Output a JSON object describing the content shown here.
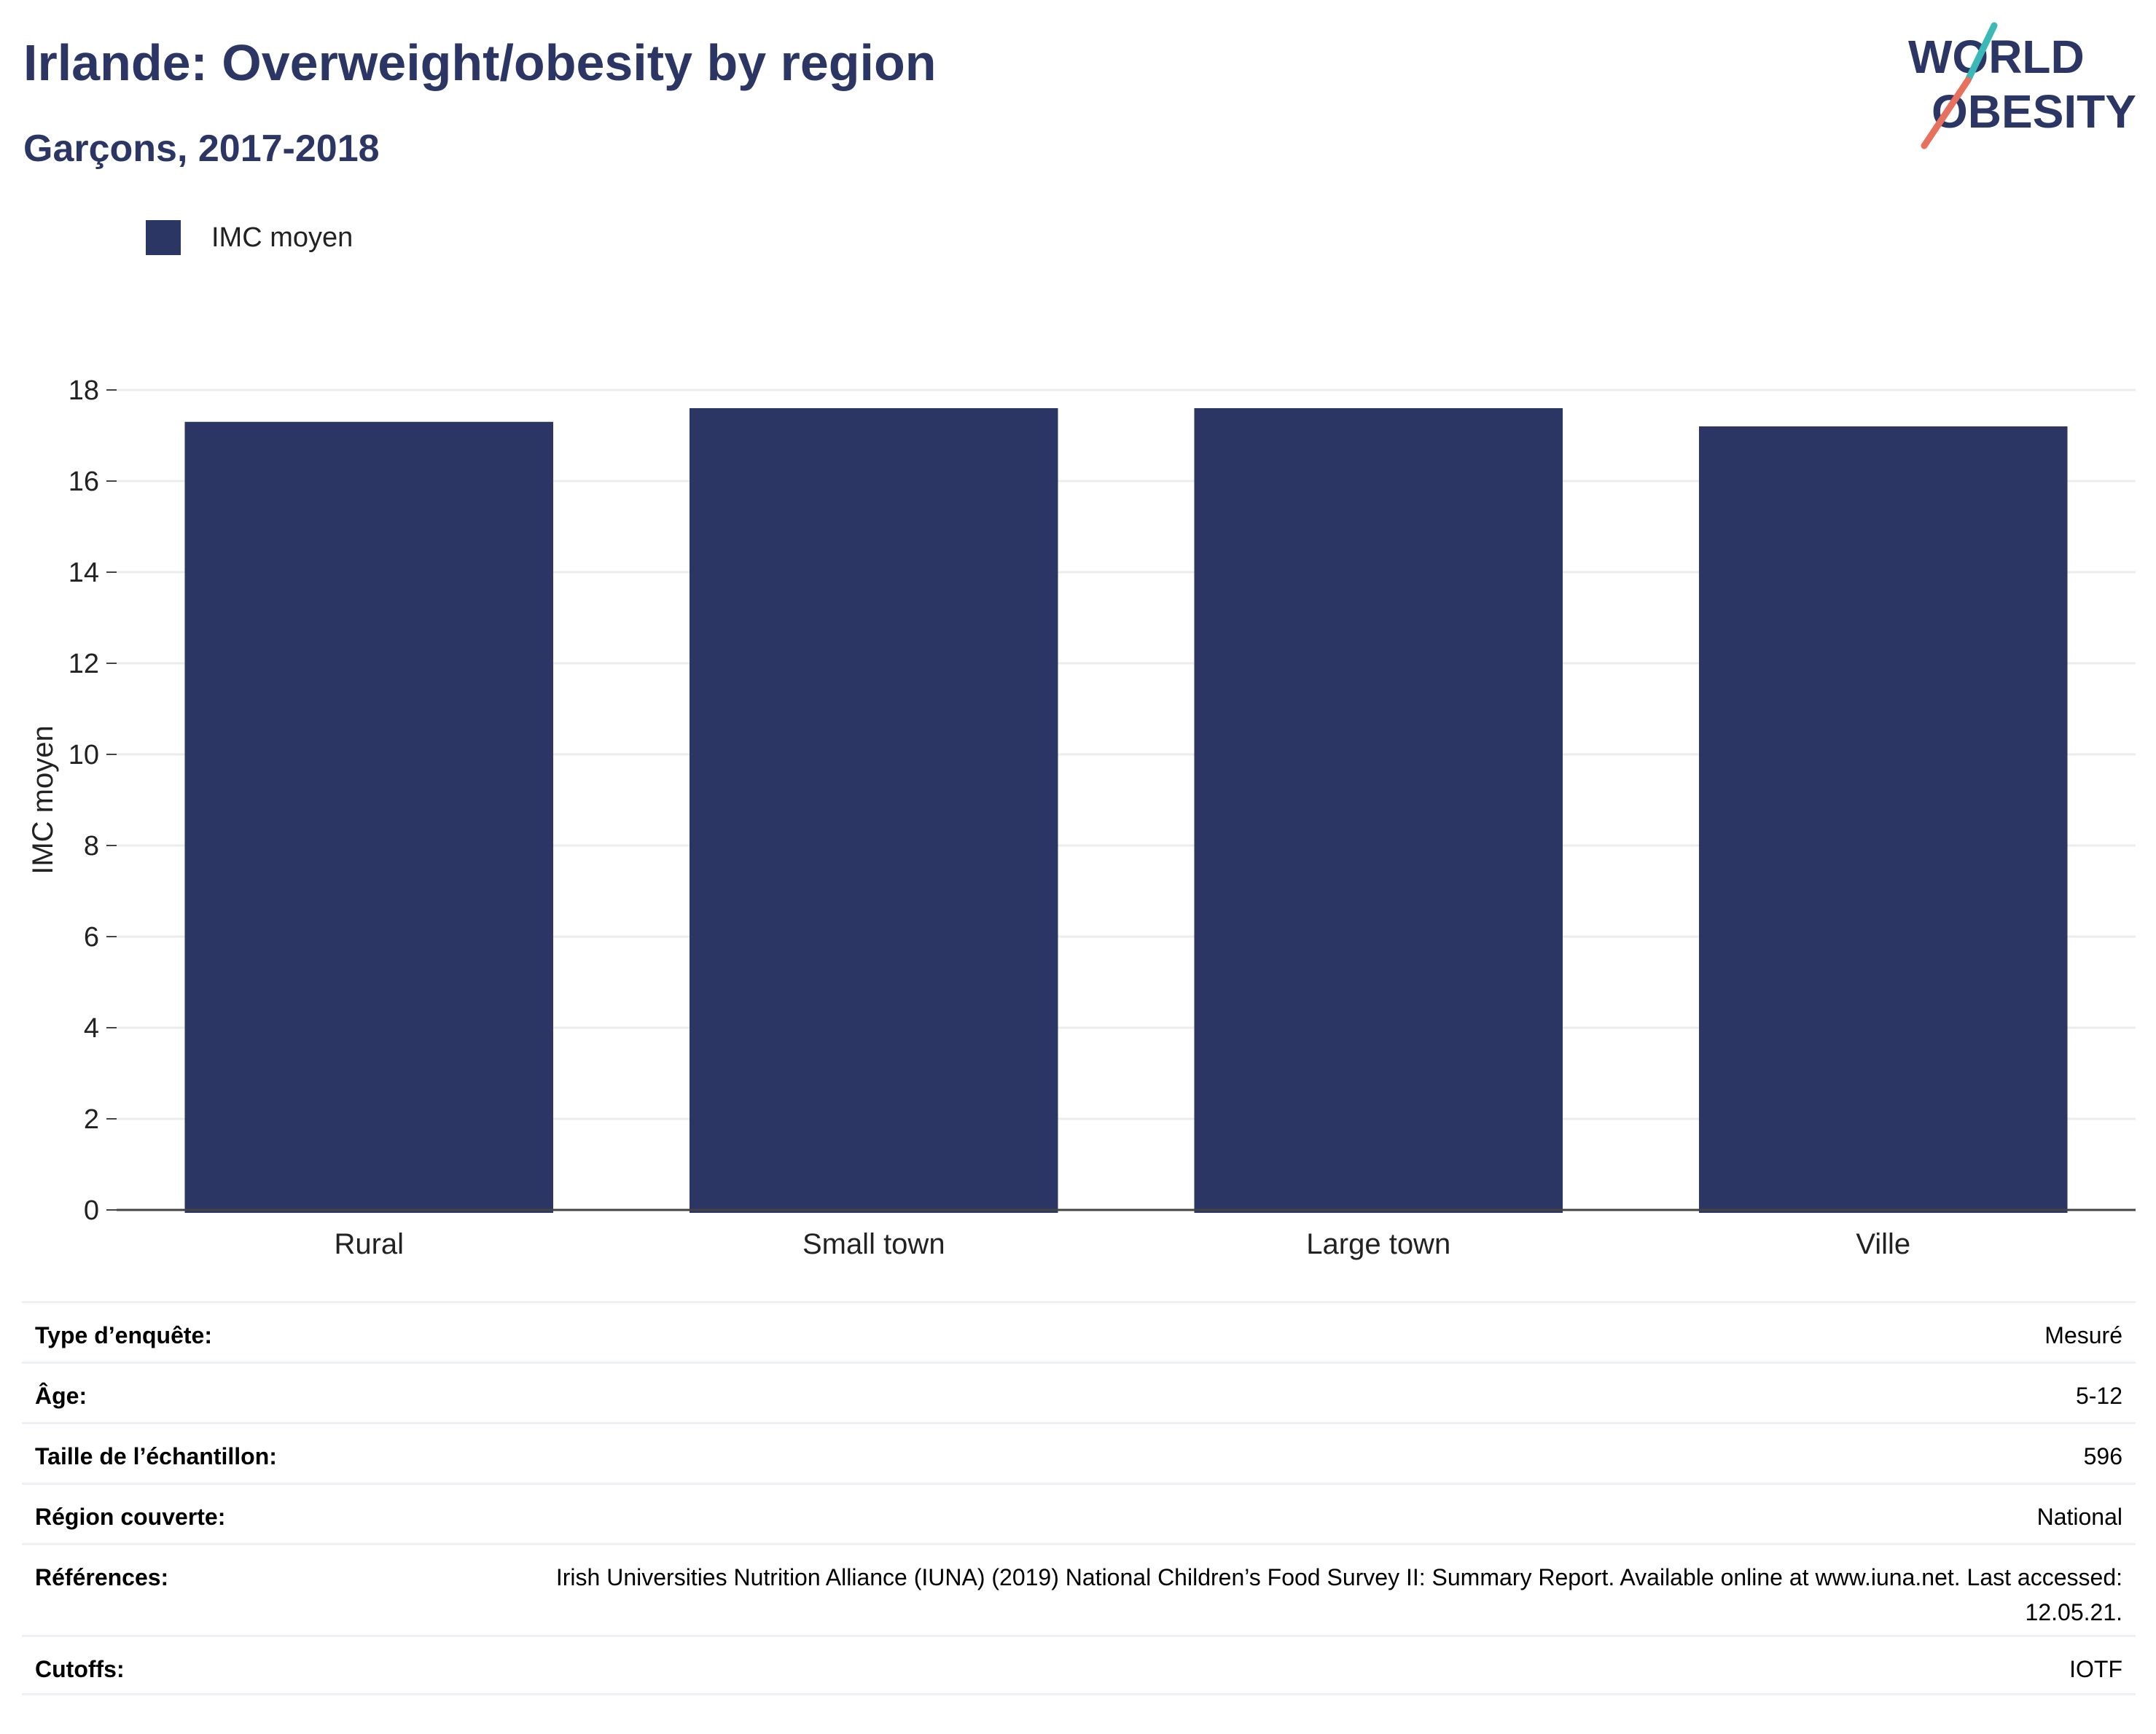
{
  "header": {
    "title": "Irlande: Overweight/obesity by region",
    "subtitle": "Garçons, 2017-2018"
  },
  "logo": {
    "line1": "WORLD",
    "line2": "OBESITY"
  },
  "legend": {
    "label": "IMC moyen",
    "color": "#2b3664"
  },
  "chart_data": {
    "type": "bar",
    "categories": [
      "Rural",
      "Small town",
      "Large town",
      "Ville"
    ],
    "series": [
      {
        "name": "IMC moyen",
        "values": [
          17.3,
          17.6,
          17.6,
          17.2
        ]
      }
    ],
    "ylabel": "IMC moyen",
    "xlabel": "",
    "ylim": [
      0,
      18
    ],
    "yticks": [
      0,
      2,
      4,
      6,
      8,
      10,
      12,
      14,
      16,
      18
    ],
    "grid": true,
    "legend_position": "top-left",
    "bar_color": "#2b3664"
  },
  "info": [
    {
      "label": "Type d’enquête:",
      "value": "Mesuré"
    },
    {
      "label": "Âge:",
      "value": "5-12"
    },
    {
      "label": "Taille de l’échantillon:",
      "value": "596"
    },
    {
      "label": "Région couverte:",
      "value": "National"
    },
    {
      "label": "Références:",
      "value": "Irish Universities Nutrition Alliance (IUNA) (2019) National Children’s Food Survey II: Summary Report. Available online at www.iuna.net. Last accessed: 12.05.21."
    },
    {
      "label": "Cutoffs:",
      "value": "IOTF"
    }
  ]
}
